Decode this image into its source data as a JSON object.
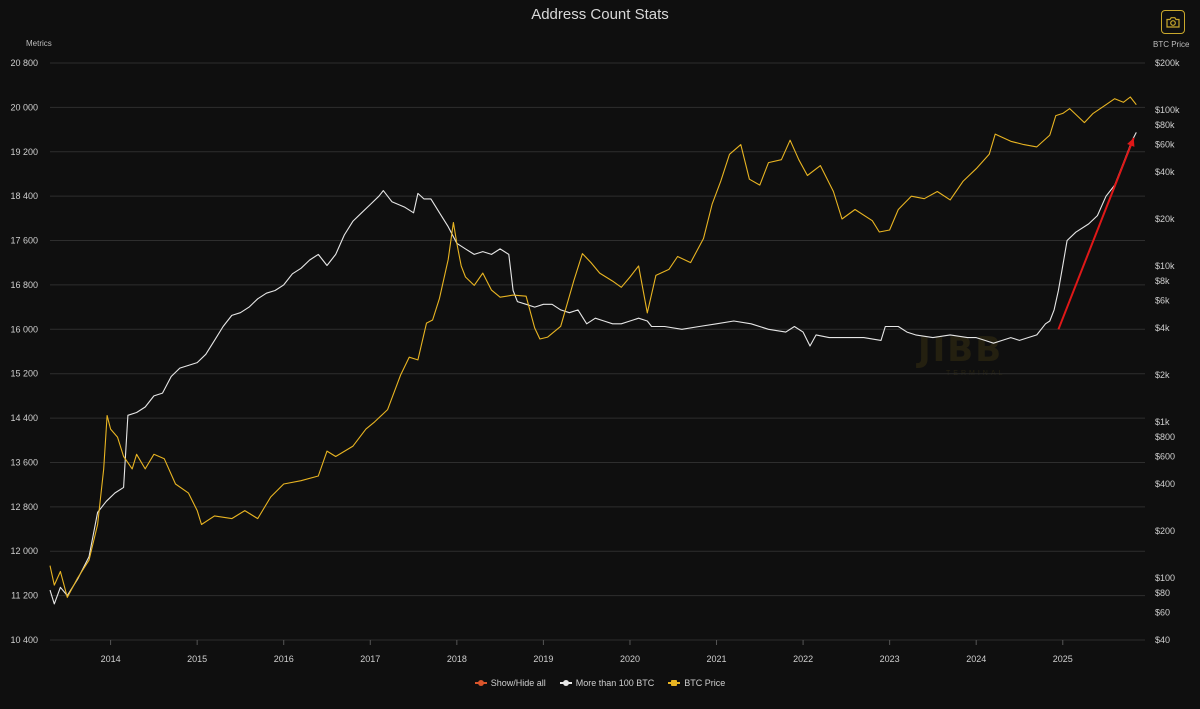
{
  "chart_data": {
    "type": "line",
    "title": "Address Count Stats",
    "y_left_label": "Metrics",
    "y_right_label": "BTC Price",
    "y_left_range": [
      10400,
      20800
    ],
    "y_left_ticks": [
      10400,
      11200,
      12000,
      12800,
      13600,
      14400,
      15200,
      16000,
      16800,
      17600,
      18400,
      19200,
      20000,
      20800
    ],
    "y_left_tick_labels": [
      "10 400",
      "11 200",
      "12 000",
      "12 800",
      "13 600",
      "14 400",
      "15 200",
      "16 000",
      "16 800",
      "17 600",
      "18 400",
      "19 200",
      "20 000",
      "20 800"
    ],
    "y_right_scale": "log",
    "y_right_range": [
      40,
      200000
    ],
    "y_right_ticks": [
      40,
      60,
      80,
      100,
      200,
      400,
      600,
      800,
      1000,
      2000,
      4000,
      6000,
      8000,
      10000,
      20000,
      40000,
      60000,
      80000,
      100000,
      200000
    ],
    "y_right_tick_labels": [
      "$40",
      "$60",
      "$80",
      "$100",
      "$200",
      "$400",
      "$600",
      "$800",
      "$1k",
      "$2k",
      "$4k",
      "$6k",
      "$8k",
      "$10k",
      "$20k",
      "$40k",
      "$60k",
      "$80k",
      "$100k",
      "$200k"
    ],
    "x_range": [
      2013.3,
      2025.95
    ],
    "x_ticks": [
      2014,
      2015,
      2016,
      2017,
      2018,
      2019,
      2020,
      2021,
      2022,
      2023,
      2024,
      2025
    ],
    "x_tick_labels": [
      "2014",
      "2015",
      "2016",
      "2017",
      "2018",
      "2019",
      "2020",
      "2021",
      "2022",
      "2023",
      "2024",
      "2025"
    ],
    "grid": "horizontal",
    "legend_position": "bottom-center",
    "series": [
      {
        "name": "More than 100 BTC",
        "axis": "left",
        "color": "#e6e6e6",
        "points": [
          [
            2013.3,
            11300
          ],
          [
            2013.35,
            11050
          ],
          [
            2013.42,
            11350
          ],
          [
            2013.5,
            11200
          ],
          [
            2013.62,
            11500
          ],
          [
            2013.75,
            11900
          ],
          [
            2013.85,
            12700
          ],
          [
            2013.95,
            12900
          ],
          [
            2014.05,
            13050
          ],
          [
            2014.15,
            13150
          ],
          [
            2014.2,
            14450
          ],
          [
            2014.3,
            14500
          ],
          [
            2014.4,
            14600
          ],
          [
            2014.5,
            14800
          ],
          [
            2014.6,
            14850
          ],
          [
            2014.7,
            15150
          ],
          [
            2014.8,
            15300
          ],
          [
            2014.9,
            15350
          ],
          [
            2015.0,
            15400
          ],
          [
            2015.1,
            15550
          ],
          [
            2015.2,
            15800
          ],
          [
            2015.3,
            16050
          ],
          [
            2015.4,
            16250
          ],
          [
            2015.5,
            16300
          ],
          [
            2015.6,
            16400
          ],
          [
            2015.7,
            16550
          ],
          [
            2015.8,
            16650
          ],
          [
            2015.9,
            16700
          ],
          [
            2016.0,
            16800
          ],
          [
            2016.1,
            17000
          ],
          [
            2016.2,
            17100
          ],
          [
            2016.3,
            17250
          ],
          [
            2016.4,
            17350
          ],
          [
            2016.5,
            17150
          ],
          [
            2016.6,
            17350
          ],
          [
            2016.7,
            17700
          ],
          [
            2016.8,
            17950
          ],
          [
            2016.9,
            18100
          ],
          [
            2017.0,
            18250
          ],
          [
            2017.1,
            18400
          ],
          [
            2017.15,
            18500
          ],
          [
            2017.25,
            18300
          ],
          [
            2017.4,
            18200
          ],
          [
            2017.5,
            18100
          ],
          [
            2017.55,
            18450
          ],
          [
            2017.62,
            18350
          ],
          [
            2017.7,
            18350
          ],
          [
            2017.8,
            18100
          ],
          [
            2017.9,
            17850
          ],
          [
            2018.0,
            17550
          ],
          [
            2018.1,
            17450
          ],
          [
            2018.2,
            17350
          ],
          [
            2018.3,
            17400
          ],
          [
            2018.4,
            17350
          ],
          [
            2018.5,
            17450
          ],
          [
            2018.6,
            17350
          ],
          [
            2018.65,
            16700
          ],
          [
            2018.7,
            16500
          ],
          [
            2018.8,
            16450
          ],
          [
            2018.9,
            16400
          ],
          [
            2019.0,
            16450
          ],
          [
            2019.1,
            16450
          ],
          [
            2019.2,
            16350
          ],
          [
            2019.3,
            16300
          ],
          [
            2019.4,
            16350
          ],
          [
            2019.5,
            16100
          ],
          [
            2019.6,
            16200
          ],
          [
            2019.7,
            16150
          ],
          [
            2019.8,
            16100
          ],
          [
            2019.9,
            16100
          ],
          [
            2020.0,
            16150
          ],
          [
            2020.1,
            16200
          ],
          [
            2020.2,
            16150
          ],
          [
            2020.25,
            16050
          ],
          [
            2020.4,
            16050
          ],
          [
            2020.6,
            16000
          ],
          [
            2020.8,
            16050
          ],
          [
            2021.0,
            16100
          ],
          [
            2021.2,
            16150
          ],
          [
            2021.4,
            16100
          ],
          [
            2021.6,
            16000
          ],
          [
            2021.8,
            15950
          ],
          [
            2021.9,
            16050
          ],
          [
            2022.0,
            15950
          ],
          [
            2022.08,
            15700
          ],
          [
            2022.15,
            15900
          ],
          [
            2022.3,
            15850
          ],
          [
            2022.5,
            15850
          ],
          [
            2022.7,
            15850
          ],
          [
            2022.9,
            15800
          ],
          [
            2022.95,
            16050
          ],
          [
            2023.1,
            16050
          ],
          [
            2023.2,
            15950
          ],
          [
            2023.3,
            15900
          ],
          [
            2023.5,
            15850
          ],
          [
            2023.7,
            15900
          ],
          [
            2023.9,
            15850
          ],
          [
            2024.0,
            15850
          ],
          [
            2024.1,
            15800
          ],
          [
            2024.2,
            15750
          ],
          [
            2024.3,
            15800
          ],
          [
            2024.4,
            15850
          ],
          [
            2024.5,
            15800
          ],
          [
            2024.6,
            15850
          ],
          [
            2024.7,
            15900
          ],
          [
            2024.8,
            16100
          ],
          [
            2024.85,
            16150
          ],
          [
            2024.9,
            16350
          ],
          [
            2024.95,
            16700
          ],
          [
            2025.0,
            17150
          ],
          [
            2025.05,
            17600
          ],
          [
            2025.15,
            17750
          ],
          [
            2025.3,
            17900
          ],
          [
            2025.4,
            18050
          ],
          [
            2025.5,
            18400
          ],
          [
            2025.6,
            18600
          ],
          [
            2025.7,
            19000
          ],
          [
            2025.8,
            19400
          ],
          [
            2025.85,
            19550
          ]
        ]
      },
      {
        "name": "BTC Price",
        "axis": "right",
        "color": "#e8b422",
        "points": [
          [
            2013.3,
            120
          ],
          [
            2013.35,
            90
          ],
          [
            2013.42,
            110
          ],
          [
            2013.5,
            75
          ],
          [
            2013.62,
            100
          ],
          [
            2013.75,
            130
          ],
          [
            2013.85,
            220
          ],
          [
            2013.92,
            500
          ],
          [
            2013.96,
            1100
          ],
          [
            2014.0,
            900
          ],
          [
            2014.08,
            800
          ],
          [
            2014.15,
            600
          ],
          [
            2014.25,
            500
          ],
          [
            2014.3,
            620
          ],
          [
            2014.4,
            500
          ],
          [
            2014.5,
            620
          ],
          [
            2014.62,
            580
          ],
          [
            2014.75,
            400
          ],
          [
            2014.9,
            350
          ],
          [
            2015.0,
            270
          ],
          [
            2015.05,
            220
          ],
          [
            2015.2,
            250
          ],
          [
            2015.4,
            240
          ],
          [
            2015.55,
            270
          ],
          [
            2015.7,
            240
          ],
          [
            2015.85,
            330
          ],
          [
            2016.0,
            400
          ],
          [
            2016.2,
            420
          ],
          [
            2016.4,
            450
          ],
          [
            2016.5,
            650
          ],
          [
            2016.6,
            600
          ],
          [
            2016.8,
            700
          ],
          [
            2016.95,
            900
          ],
          [
            2017.05,
            1000
          ],
          [
            2017.2,
            1200
          ],
          [
            2017.35,
            2000
          ],
          [
            2017.45,
            2600
          ],
          [
            2017.55,
            2500
          ],
          [
            2017.65,
            4300
          ],
          [
            2017.72,
            4500
          ],
          [
            2017.8,
            6200
          ],
          [
            2017.9,
            11000
          ],
          [
            2017.96,
            19000
          ],
          [
            2018.0,
            14000
          ],
          [
            2018.05,
            10000
          ],
          [
            2018.1,
            8500
          ],
          [
            2018.2,
            7500
          ],
          [
            2018.3,
            9000
          ],
          [
            2018.4,
            7000
          ],
          [
            2018.5,
            6300
          ],
          [
            2018.65,
            6500
          ],
          [
            2018.8,
            6400
          ],
          [
            2018.9,
            4000
          ],
          [
            2018.96,
            3400
          ],
          [
            2019.05,
            3500
          ],
          [
            2019.2,
            4100
          ],
          [
            2019.35,
            8000
          ],
          [
            2019.45,
            12000
          ],
          [
            2019.55,
            10500
          ],
          [
            2019.65,
            9000
          ],
          [
            2019.8,
            8000
          ],
          [
            2019.9,
            7300
          ],
          [
            2020.0,
            8500
          ],
          [
            2020.1,
            10000
          ],
          [
            2020.2,
            5000
          ],
          [
            2020.3,
            8700
          ],
          [
            2020.45,
            9500
          ],
          [
            2020.55,
            11500
          ],
          [
            2020.7,
            10500
          ],
          [
            2020.85,
            15000
          ],
          [
            2020.95,
            25000
          ],
          [
            2021.05,
            35000
          ],
          [
            2021.15,
            52000
          ],
          [
            2021.28,
            60000
          ],
          [
            2021.38,
            36000
          ],
          [
            2021.5,
            33000
          ],
          [
            2021.6,
            46000
          ],
          [
            2021.75,
            48000
          ],
          [
            2021.85,
            64000
          ],
          [
            2021.95,
            48000
          ],
          [
            2022.05,
            38000
          ],
          [
            2022.2,
            44000
          ],
          [
            2022.35,
            30000
          ],
          [
            2022.45,
            20000
          ],
          [
            2022.6,
            23000
          ],
          [
            2022.8,
            19500
          ],
          [
            2022.88,
            16500
          ],
          [
            2023.0,
            17000
          ],
          [
            2023.1,
            23000
          ],
          [
            2023.25,
            28000
          ],
          [
            2023.4,
            27000
          ],
          [
            2023.55,
            30000
          ],
          [
            2023.7,
            26500
          ],
          [
            2023.85,
            35000
          ],
          [
            2024.0,
            42000
          ],
          [
            2024.15,
            52000
          ],
          [
            2024.22,
            70000
          ],
          [
            2024.4,
            63000
          ],
          [
            2024.55,
            60000
          ],
          [
            2024.7,
            58000
          ],
          [
            2024.85,
            69000
          ],
          [
            2024.92,
            92000
          ],
          [
            2025.0,
            95000
          ],
          [
            2025.08,
            102000
          ],
          [
            2025.25,
            83000
          ],
          [
            2025.35,
            95000
          ],
          [
            2025.5,
            108000
          ],
          [
            2025.6,
            118000
          ],
          [
            2025.7,
            112000
          ],
          [
            2025.78,
            121000
          ],
          [
            2025.85,
            108000
          ]
        ]
      }
    ],
    "annotations": [
      {
        "type": "arrow",
        "color": "#e01818",
        "from": [
          2024.95,
          16000
        ],
        "to": [
          2025.82,
          19450
        ]
      }
    ]
  },
  "legend": [
    {
      "label": "Show/Hide all",
      "color": "#d9552b"
    },
    {
      "label": "More than 100 BTC",
      "color": "#e6e6e6"
    },
    {
      "label": "BTC Price",
      "color": "#e8b422"
    }
  ],
  "watermark": {
    "main": "JIBB",
    "sub": "TERMINAL"
  },
  "toolbar": {
    "snapshot_icon": "camera-icon"
  },
  "colors": {
    "background": "#0f0f0f",
    "grid": "#2e2e2e",
    "accent": "#e8b422",
    "arrow": "#e01818"
  }
}
